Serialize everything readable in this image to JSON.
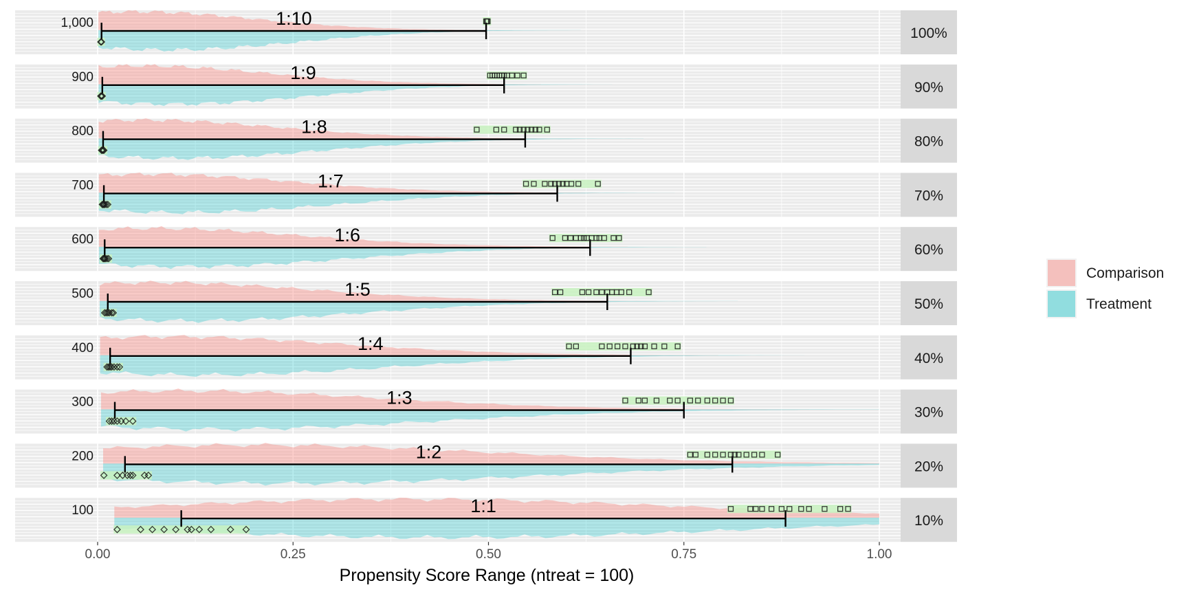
{
  "chart_data": {
    "type": "range",
    "title": "",
    "xlabel": "Propensity Score Range (ntreat = 100)",
    "ylabel": "",
    "xlim": [
      -0.05,
      1.1
    ],
    "xticks": [
      0.0,
      0.25,
      0.5,
      0.75,
      1.0
    ],
    "xtick_labels": [
      "0.00",
      "0.25",
      "0.50",
      "0.75",
      "1.00"
    ],
    "grid": true,
    "legend_position": "right",
    "legend": [
      {
        "name": "Comparison",
        "color": "#F8766D"
      },
      {
        "name": "Treatment",
        "color": "#00BFC4"
      }
    ],
    "strata": [
      {
        "n_label": "1,000",
        "ratio": "1:10",
        "percent": "100%",
        "comp_peak": 0.05,
        "comp_spread": 0.15,
        "range_min": 0.005,
        "range_max": 0.497,
        "treat_points": [
          0.497,
          0.498,
          0.499
        ],
        "comp_points": [
          0.004,
          0.005
        ]
      },
      {
        "n_label": "900",
        "ratio": "1:9",
        "percent": "90%",
        "comp_peak": 0.055,
        "comp_spread": 0.16,
        "range_min": 0.006,
        "range_max": 0.52,
        "treat_points": [
          0.502,
          0.505,
          0.508,
          0.511,
          0.514,
          0.517,
          0.52,
          0.524,
          0.53,
          0.537,
          0.545
        ],
        "comp_points": [
          0.004,
          0.005,
          0.006
        ]
      },
      {
        "n_label": "800",
        "ratio": "1:8",
        "percent": "80%",
        "comp_peak": 0.06,
        "comp_spread": 0.17,
        "range_min": 0.007,
        "range_max": 0.547,
        "treat_points": [
          0.485,
          0.51,
          0.52,
          0.535,
          0.54,
          0.545,
          0.55,
          0.555,
          0.56,
          0.565,
          0.575
        ],
        "comp_points": [
          0.005,
          0.006,
          0.007,
          0.008
        ]
      },
      {
        "n_label": "700",
        "ratio": "1:7",
        "percent": "70%",
        "comp_peak": 0.065,
        "comp_spread": 0.18,
        "range_min": 0.008,
        "range_max": 0.588,
        "treat_points": [
          0.548,
          0.558,
          0.572,
          0.58,
          0.585,
          0.59,
          0.595,
          0.6,
          0.606,
          0.615,
          0.64
        ],
        "comp_points": [
          0.006,
          0.007,
          0.008,
          0.009,
          0.011,
          0.013
        ]
      },
      {
        "n_label": "600",
        "ratio": "1:6",
        "percent": "60%",
        "comp_peak": 0.07,
        "comp_spread": 0.19,
        "range_min": 0.009,
        "range_max": 0.63,
        "treat_points": [
          0.582,
          0.598,
          0.605,
          0.612,
          0.618,
          0.622,
          0.626,
          0.632,
          0.638,
          0.642,
          0.648,
          0.66,
          0.667
        ],
        "comp_points": [
          0.007,
          0.008,
          0.009,
          0.01,
          0.012,
          0.014
        ]
      },
      {
        "n_label": "500",
        "ratio": "1:5",
        "percent": "50%",
        "comp_peak": 0.075,
        "comp_spread": 0.2,
        "range_min": 0.013,
        "range_max": 0.652,
        "treat_points": [
          0.585,
          0.592,
          0.62,
          0.628,
          0.638,
          0.645,
          0.652,
          0.658,
          0.664,
          0.67,
          0.68,
          0.705
        ],
        "comp_points": [
          0.009,
          0.011,
          0.013,
          0.015,
          0.018,
          0.02
        ]
      },
      {
        "n_label": "400",
        "ratio": "1:4",
        "percent": "40%",
        "comp_peak": 0.09,
        "comp_spread": 0.22,
        "range_min": 0.016,
        "range_max": 0.682,
        "treat_points": [
          0.603,
          0.612,
          0.645,
          0.655,
          0.665,
          0.675,
          0.685,
          0.69,
          0.695,
          0.7,
          0.712,
          0.725,
          0.742
        ],
        "comp_points": [
          0.012,
          0.014,
          0.016,
          0.018,
          0.021,
          0.025,
          0.028
        ]
      },
      {
        "n_label": "300",
        "ratio": "1:3",
        "percent": "30%",
        "comp_peak": 0.11,
        "comp_spread": 0.25,
        "range_min": 0.022,
        "range_max": 0.75,
        "treat_points": [
          0.675,
          0.692,
          0.7,
          0.715,
          0.732,
          0.742,
          0.758,
          0.768,
          0.78,
          0.79,
          0.8,
          0.81
        ],
        "comp_points": [
          0.015,
          0.018,
          0.021,
          0.025,
          0.03,
          0.036,
          0.045
        ]
      },
      {
        "n_label": "200",
        "ratio": "1:2",
        "percent": "20%",
        "comp_peak": 0.2,
        "comp_spread": 0.3,
        "range_min": 0.035,
        "range_max": 0.812,
        "treat_points": [
          0.758,
          0.765,
          0.78,
          0.79,
          0.8,
          0.81,
          0.815,
          0.82,
          0.83,
          0.84,
          0.85,
          0.87
        ],
        "comp_points": [
          0.008,
          0.025,
          0.032,
          0.038,
          0.042,
          0.045,
          0.06,
          0.065
        ]
      },
      {
        "n_label": "100",
        "ratio": "1:1",
        "percent": "10%",
        "comp_peak": 0.4,
        "comp_spread": 0.35,
        "range_min": 0.107,
        "range_max": 0.88,
        "treat_points": [
          0.81,
          0.835,
          0.842,
          0.85,
          0.862,
          0.875,
          0.885,
          0.9,
          0.91,
          0.93,
          0.95,
          0.96
        ],
        "comp_points": [
          0.025,
          0.055,
          0.07,
          0.085,
          0.1,
          0.115,
          0.12,
          0.13,
          0.145,
          0.17,
          0.19
        ]
      }
    ]
  }
}
